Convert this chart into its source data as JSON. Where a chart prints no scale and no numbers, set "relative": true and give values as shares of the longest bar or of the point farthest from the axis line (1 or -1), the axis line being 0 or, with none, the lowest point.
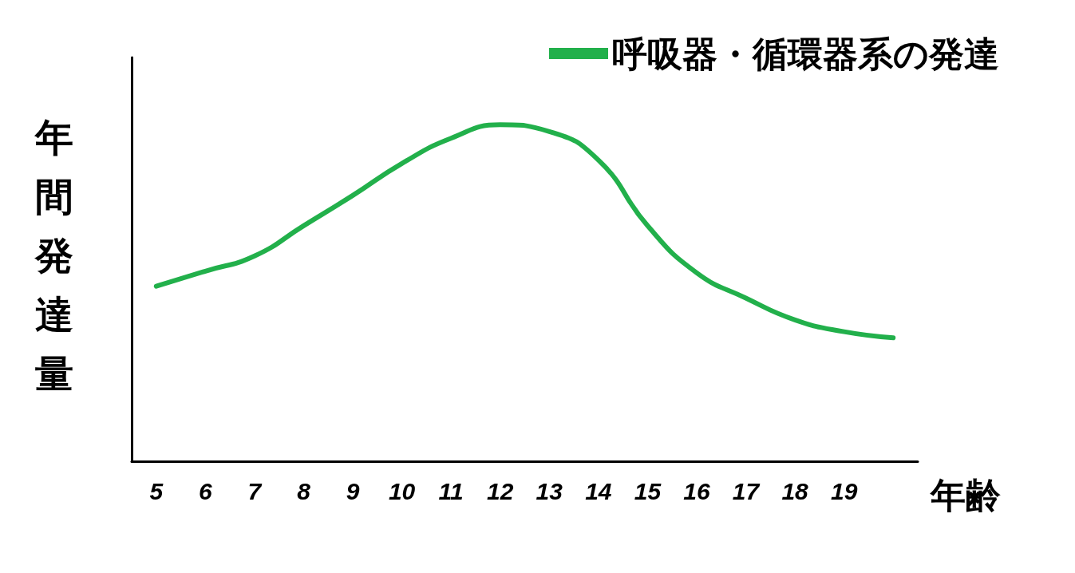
{
  "chart_data": {
    "type": "line",
    "relative": true,
    "xlabel": "年齢",
    "ylabel": "年間発達量",
    "categories": [
      "5",
      "6",
      "7",
      "8",
      "9",
      "10",
      "11",
      "12",
      "13",
      "14",
      "15",
      "16",
      "17",
      "18",
      "19",
      null
    ],
    "series": [
      {
        "name": "呼吸器・循環器系の発達",
        "color": "#22b04b",
        "values": [
          0.52,
          0.565,
          0.61,
          0.7,
          0.79,
          0.885,
          0.96,
          1.0,
          0.98,
          0.895,
          0.7,
          0.56,
          0.485,
          0.42,
          0.385,
          0.367
        ]
      }
    ],
    "legend": "top right",
    "marker": "none",
    "line_style": "solid",
    "grid": false,
    "tick_labels": "x"
  }
}
